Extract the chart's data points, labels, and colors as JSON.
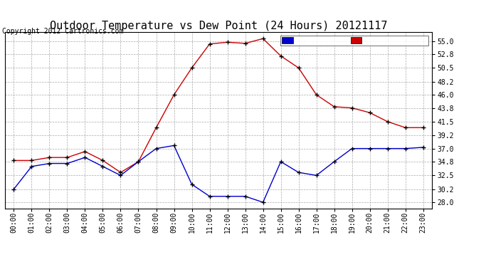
{
  "title": "Outdoor Temperature vs Dew Point (24 Hours) 20121117",
  "copyright_text": "Copyright 2012 Cartronics.com",
  "hours": [
    "00:00",
    "01:00",
    "02:00",
    "03:00",
    "04:00",
    "05:00",
    "06:00",
    "07:00",
    "08:00",
    "09:00",
    "10:00",
    "11:00",
    "12:00",
    "13:00",
    "14:00",
    "15:00",
    "16:00",
    "17:00",
    "18:00",
    "19:00",
    "20:00",
    "21:00",
    "22:00",
    "23:00"
  ],
  "temperature": [
    35.0,
    35.0,
    35.5,
    35.5,
    36.5,
    35.0,
    33.0,
    34.8,
    40.5,
    46.0,
    50.5,
    54.5,
    54.8,
    54.6,
    55.4,
    52.5,
    50.5,
    46.0,
    44.0,
    43.8,
    43.0,
    41.5,
    40.5,
    40.5
  ],
  "dew_point": [
    30.2,
    34.0,
    34.5,
    34.5,
    35.5,
    34.0,
    32.5,
    34.8,
    37.0,
    37.5,
    31.0,
    29.0,
    29.0,
    29.0,
    28.0,
    34.8,
    33.0,
    32.5,
    34.8,
    37.0,
    37.0,
    37.0,
    37.0,
    37.2
  ],
  "temp_color": "#cc0000",
  "dew_color": "#0000cc",
  "ylim_min": 27.0,
  "ylim_max": 56.5,
  "yticks": [
    28.0,
    30.2,
    32.5,
    34.8,
    37.0,
    39.2,
    41.5,
    43.8,
    46.0,
    48.2,
    50.5,
    52.8,
    55.0
  ],
  "bg_color": "#ffffff",
  "grid_color": "#aaaaaa",
  "legend_dew_bg": "#0000cc",
  "legend_temp_bg": "#cc0000",
  "title_fontsize": 11,
  "axis_fontsize": 7,
  "copyright_fontsize": 7,
  "legend_fontsize": 7.5
}
